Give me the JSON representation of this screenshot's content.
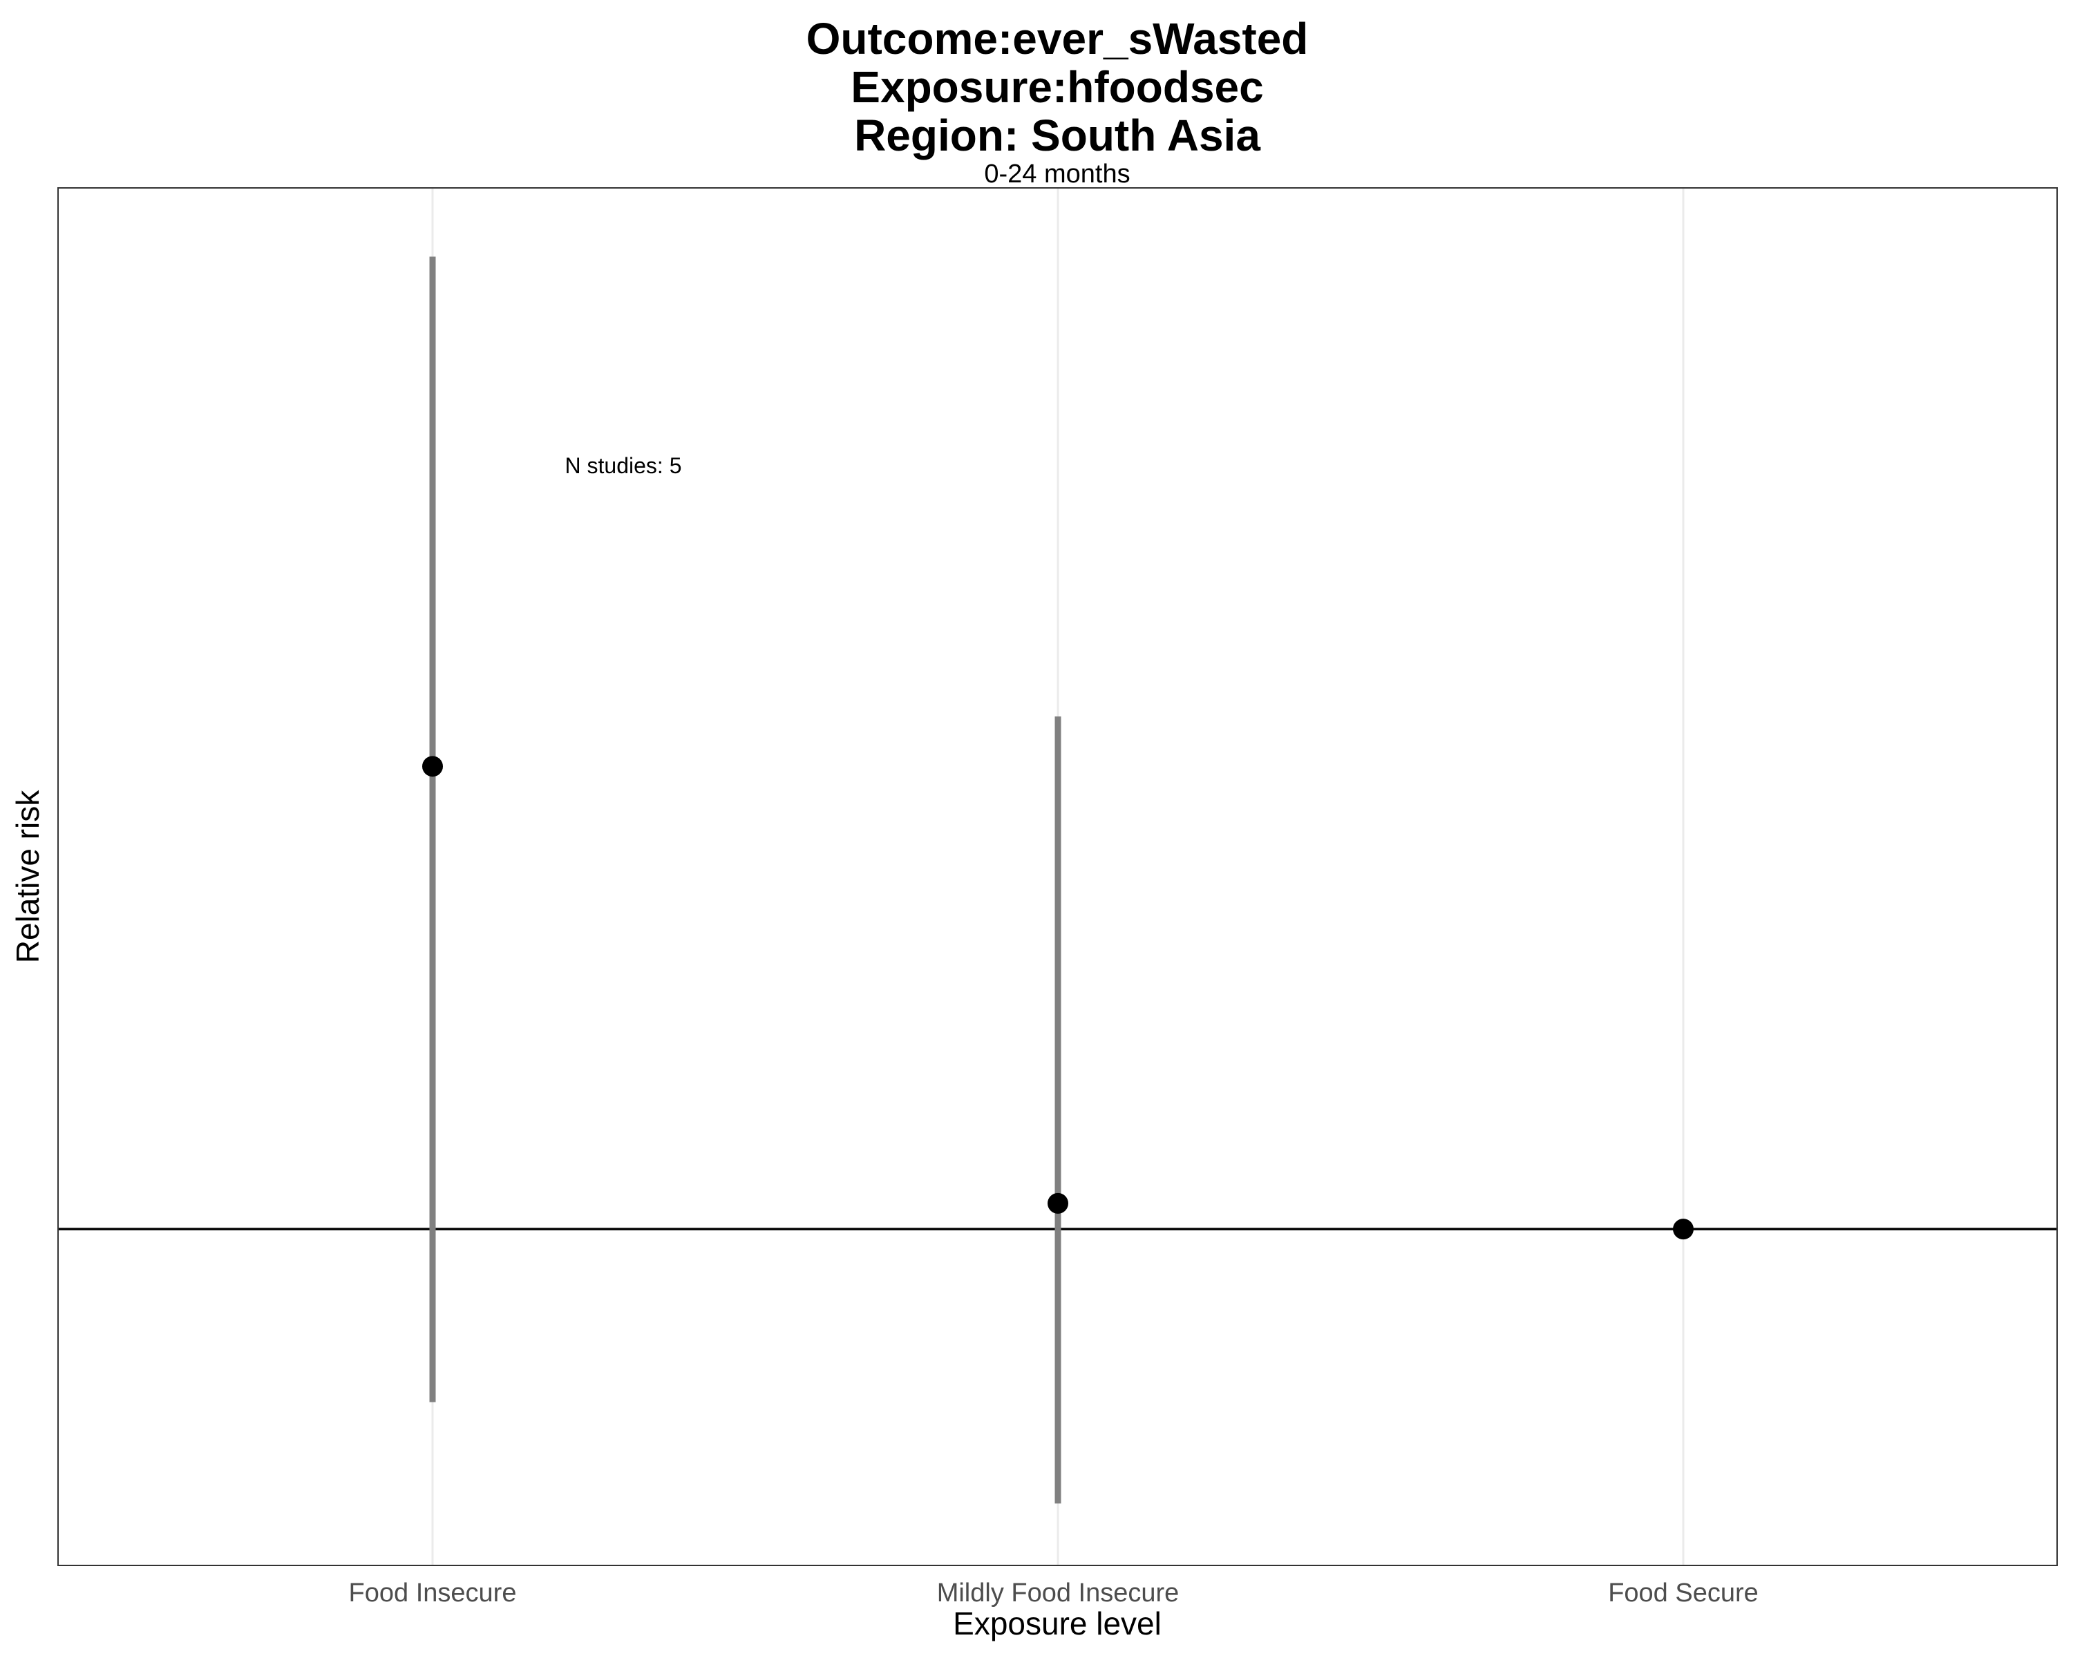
{
  "chart_data": {
    "type": "scatter",
    "title_lines": [
      "Outcome:ever_sWasted",
      "Exposure:hfoodsec",
      "Region: South Asia"
    ],
    "subtitle": "0-24 months",
    "xlabel": "Exposure level",
    "ylabel": "Relative risk",
    "categories": [
      "Food Insecure",
      "Mildly Food Insecure",
      "Food Secure"
    ],
    "points": [
      {
        "category": "Food Insecure",
        "estimate": 1.7,
        "ci_lower": 0.82,
        "ci_upper": 3.05
      },
      {
        "category": "Mildly Food Insecure",
        "estimate": 1.03,
        "ci_lower": 0.73,
        "ci_upper": 1.8
      },
      {
        "category": "Food Secure",
        "estimate": 1.0,
        "ci_lower": null,
        "ci_upper": null
      }
    ],
    "reference_line": 1,
    "y_scale": "log",
    "y_tick_labels_shown": false,
    "ylim": [
      0.68,
      3.3
    ],
    "grid": true,
    "legend": "none",
    "annotation": {
      "text": "N studies: 5",
      "category": "Food Insecure",
      "y": 2.4
    },
    "colors": {
      "point": "#000000",
      "errorbar": "#808080",
      "refline": "#000000",
      "grid": "#ebebeb",
      "panel_border": "#333333"
    }
  }
}
